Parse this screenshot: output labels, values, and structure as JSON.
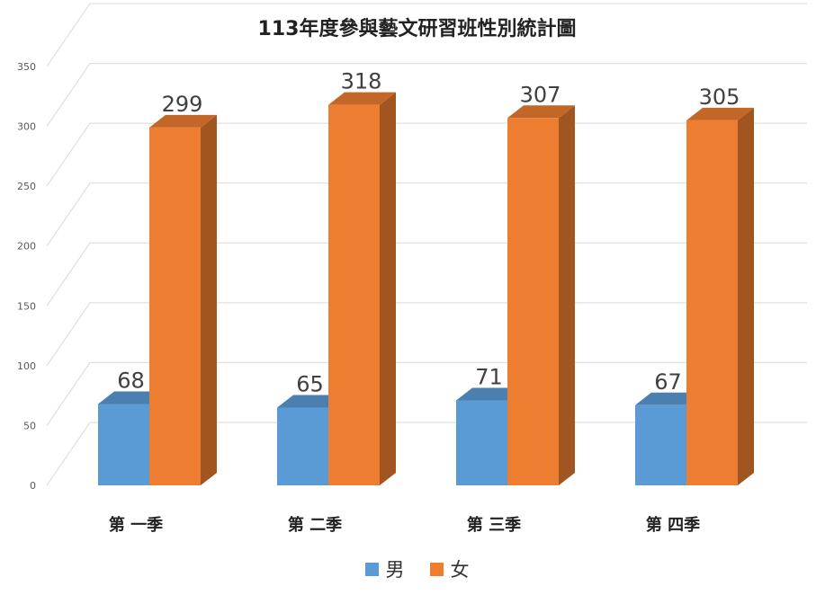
{
  "chart_data": {
    "type": "bar",
    "title": "113年度參與藝文研習班性別統計圖",
    "categories": [
      "第 一季",
      "第 二季",
      "第 三季",
      "第 四季"
    ],
    "series": [
      {
        "name": "男",
        "values": [
          68,
          65,
          71,
          67
        ],
        "color": "#5B9BD5"
      },
      {
        "name": "女",
        "values": [
          299,
          318,
          307,
          305
        ],
        "color": "#ED7D31"
      }
    ],
    "ylim": [
      0,
      350
    ],
    "yticks": [
      "0",
      "50",
      "100",
      "150",
      "200",
      "250",
      "300",
      "350"
    ],
    "grid": true,
    "legend_position": "bottom",
    "style": "3d-column"
  }
}
